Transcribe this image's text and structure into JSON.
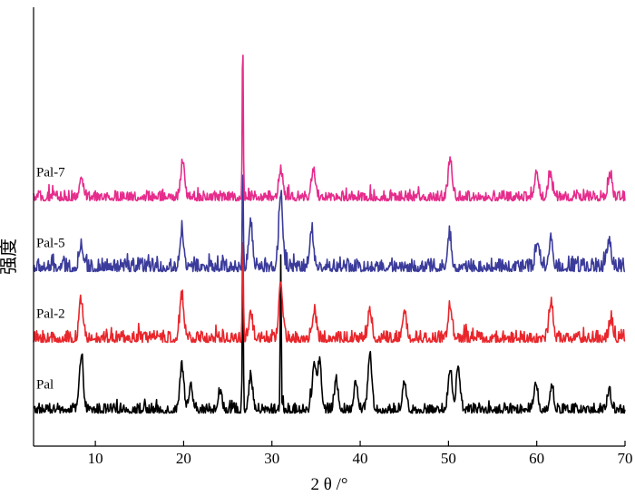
{
  "chart_data": {
    "type": "line",
    "title": "",
    "xlabel": "2 θ /°",
    "ylabel": "强度",
    "xlim": [
      3,
      70
    ],
    "x_ticks": [
      10,
      20,
      30,
      40,
      50,
      60,
      70
    ],
    "x_tick_labels": [
      "10",
      "20",
      "30",
      "40",
      "50",
      "60",
      "70"
    ],
    "y_ticks_shown": false,
    "grid": false,
    "legend": "none",
    "series": [
      {
        "name": "Pal",
        "color": "#000000",
        "baseline": 0.0,
        "noise": 0.06,
        "peaks": [
          [
            8.4,
            0.55
          ],
          [
            19.8,
            0.45
          ],
          [
            20.8,
            0.25
          ],
          [
            24.1,
            0.2
          ],
          [
            26.7,
            1.65
          ],
          [
            27.6,
            0.35
          ],
          [
            31.0,
            1.65
          ],
          [
            34.8,
            0.5
          ],
          [
            35.4,
            0.5
          ],
          [
            37.3,
            0.3
          ],
          [
            39.5,
            0.3
          ],
          [
            41.1,
            0.6
          ],
          [
            45.0,
            0.3
          ],
          [
            50.2,
            0.45
          ],
          [
            51.1,
            0.45
          ],
          [
            59.9,
            0.3
          ],
          [
            61.7,
            0.25
          ],
          [
            68.2,
            0.2
          ]
        ]
      },
      {
        "name": "Pal-2",
        "color": "#e8262b",
        "baseline": 0.75,
        "noise": 0.07,
        "peaks": [
          [
            8.4,
            0.4
          ],
          [
            19.8,
            0.45
          ],
          [
            26.7,
            1.1
          ],
          [
            27.6,
            0.25
          ],
          [
            31.0,
            0.6
          ],
          [
            34.8,
            0.3
          ],
          [
            41.1,
            0.3
          ],
          [
            45.0,
            0.3
          ],
          [
            50.2,
            0.35
          ],
          [
            61.6,
            0.4
          ],
          [
            68.4,
            0.2
          ]
        ]
      },
      {
        "name": "Pal-5",
        "color": "#3b3b9b",
        "baseline": 1.5,
        "noise": 0.08,
        "peaks": [
          [
            8.4,
            0.25
          ],
          [
            19.8,
            0.4
          ],
          [
            26.7,
            1.15
          ],
          [
            27.6,
            0.45
          ],
          [
            31.0,
            0.8
          ],
          [
            34.5,
            0.4
          ],
          [
            50.1,
            0.35
          ],
          [
            60.1,
            0.3
          ],
          [
            61.6,
            0.3
          ],
          [
            68.2,
            0.3
          ]
        ]
      },
      {
        "name": "Pal-7",
        "color": "#e62c8c",
        "baseline": 2.25,
        "noise": 0.06,
        "peaks": [
          [
            8.4,
            0.2
          ],
          [
            19.9,
            0.4
          ],
          [
            26.7,
            1.7
          ],
          [
            31.0,
            0.3
          ],
          [
            34.7,
            0.3
          ],
          [
            50.2,
            0.4
          ],
          [
            60.0,
            0.25
          ],
          [
            61.5,
            0.25
          ],
          [
            68.3,
            0.25
          ]
        ]
      }
    ],
    "ylim": [
      -0.35,
      4.3
    ]
  }
}
